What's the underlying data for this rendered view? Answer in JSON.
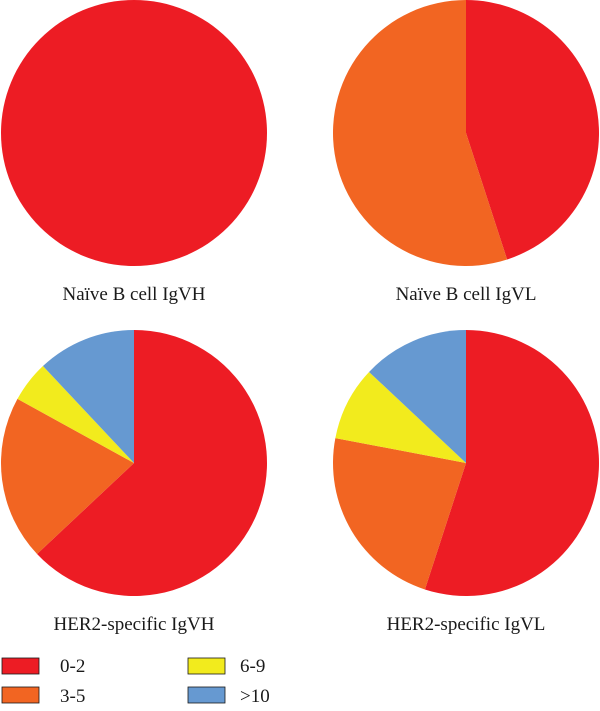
{
  "chart_data": [
    {
      "type": "pie",
      "title": "Naïve B cell IgVH",
      "categories": [
        "0-2",
        "3-5",
        "6-9",
        ">10"
      ],
      "values": [
        100,
        0,
        0,
        0
      ]
    },
    {
      "type": "pie",
      "title": "Naïve B cell IgVL",
      "categories": [
        "0-2",
        "3-5",
        "6-9",
        ">10"
      ],
      "values": [
        45,
        55,
        0,
        0
      ]
    },
    {
      "type": "pie",
      "title": "HER2-specific IgVH",
      "categories": [
        "0-2",
        "3-5",
        "6-9",
        ">10"
      ],
      "values": [
        63,
        20,
        5,
        12
      ]
    },
    {
      "type": "pie",
      "title": "HER2-specific IgVL",
      "categories": [
        "0-2",
        "3-5",
        "6-9",
        ">10"
      ],
      "values": [
        55,
        23,
        9,
        13
      ]
    }
  ],
  "legend": {
    "items": [
      {
        "label": "0-2",
        "color": "#ed1c24"
      },
      {
        "label": "3-5",
        "color": "#f26522"
      },
      {
        "label": "6-9",
        "color": "#f2eb1d"
      },
      {
        "label": ">10",
        "color": "#6699d1"
      }
    ]
  },
  "colors": {
    "0-2": "#ed1c24",
    "3-5": "#f26522",
    "6-9": "#f2eb1d",
    ">10": "#6699d1"
  }
}
